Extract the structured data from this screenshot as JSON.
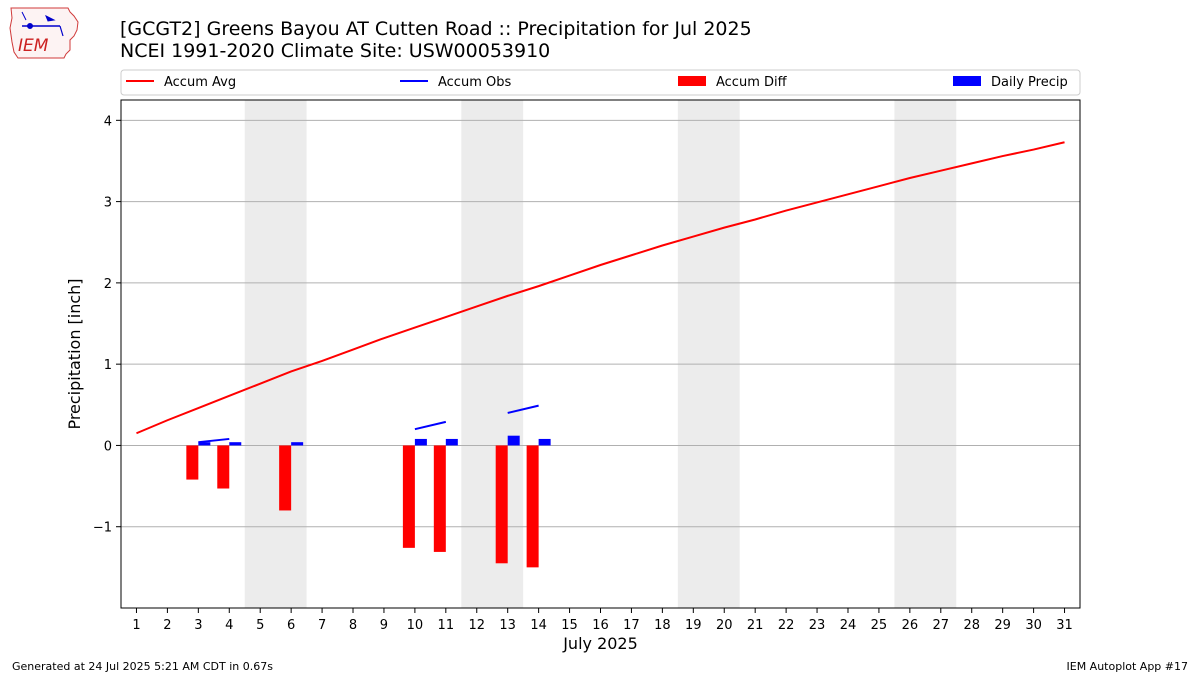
{
  "header": {
    "title_line1": "[GCGT2] Greens Bayou  AT Cutten Road :: Precipitation for Jul 2025",
    "title_line2": "NCEI 1991-2020 Climate Site: USW00053910"
  },
  "logo": {
    "text": "IEM"
  },
  "footer": {
    "left": "Generated at 24 Jul 2025 5:21 AM CDT in 0.67s",
    "right": "IEM Autoplot App #17"
  },
  "chart_data": {
    "type": "bar",
    "title": "[GCGT2] Greens Bayou  AT Cutten Road :: Precipitation for Jul 2025",
    "subtitle": "NCEI 1991-2020 Climate Site: USW00053910",
    "xlabel": "July 2025",
    "ylabel": "Precipitation [inch]",
    "ylim": [
      -2.0,
      4.25
    ],
    "xlim": [
      0.5,
      31.5
    ],
    "yticks": [
      -1,
      0,
      1,
      2,
      3,
      4
    ],
    "ytick_labels": [
      "−1",
      "0",
      "1",
      "2",
      "3",
      "4"
    ],
    "grid": "horizontal",
    "legend_position": "top",
    "weekend_shading": [
      [
        4.5,
        6.5
      ],
      [
        11.5,
        13.5
      ],
      [
        18.5,
        20.5
      ],
      [
        25.5,
        27.5
      ]
    ],
    "days": [
      1,
      2,
      3,
      4,
      5,
      6,
      7,
      8,
      9,
      10,
      11,
      12,
      13,
      14,
      15,
      16,
      17,
      18,
      19,
      20,
      21,
      22,
      23,
      24,
      25,
      26,
      27,
      28,
      29,
      30,
      31
    ],
    "legend": [
      {
        "name": "Accum Avg",
        "color": "#ff0000",
        "kind": "line"
      },
      {
        "name": "Accum Obs",
        "color": "#0000ff",
        "kind": "line"
      },
      {
        "name": "Accum Diff",
        "color": "#ff0000",
        "kind": "bar"
      },
      {
        "name": "Daily Precip",
        "color": "#0000ff",
        "kind": "bar"
      }
    ],
    "series": [
      {
        "name": "Accum Avg",
        "type": "line",
        "color": "#ff0000",
        "x": [
          1,
          2,
          3,
          4,
          5,
          6,
          7,
          8,
          9,
          10,
          11,
          12,
          13,
          14,
          15,
          16,
          17,
          18,
          19,
          20,
          21,
          22,
          23,
          24,
          25,
          26,
          27,
          28,
          29,
          30,
          31
        ],
        "values": [
          0.15,
          0.31,
          0.46,
          0.61,
          0.76,
          0.91,
          1.04,
          1.18,
          1.32,
          1.45,
          1.58,
          1.71,
          1.84,
          1.96,
          2.09,
          2.22,
          2.34,
          2.46,
          2.57,
          2.68,
          2.78,
          2.89,
          2.99,
          3.09,
          3.19,
          3.29,
          3.38,
          3.47,
          3.56,
          3.64,
          3.73
        ]
      },
      {
        "name": "Accum Obs",
        "type": "line-segments",
        "color": "#0000ff",
        "segments": [
          {
            "x": [
              3,
              4
            ],
            "values": [
              0.04,
              0.08
            ]
          },
          {
            "x": [
              10,
              11
            ],
            "values": [
              0.2,
              0.29
            ]
          },
          {
            "x": [
              13,
              14
            ],
            "values": [
              0.4,
              0.49
            ]
          }
        ]
      },
      {
        "name": "Accum Diff",
        "type": "bar",
        "color": "#ff0000",
        "x": [
          3,
          4,
          6,
          10,
          11,
          13,
          14
        ],
        "values": [
          -0.42,
          -0.53,
          -0.8,
          -1.26,
          -1.31,
          -1.45,
          -1.5
        ]
      },
      {
        "name": "Daily Precip",
        "type": "bar",
        "color": "#0000ff",
        "x": [
          3,
          4,
          6,
          10,
          11,
          13,
          14
        ],
        "values": [
          0.04,
          0.04,
          0.04,
          0.08,
          0.08,
          0.12,
          0.08
        ]
      }
    ]
  }
}
